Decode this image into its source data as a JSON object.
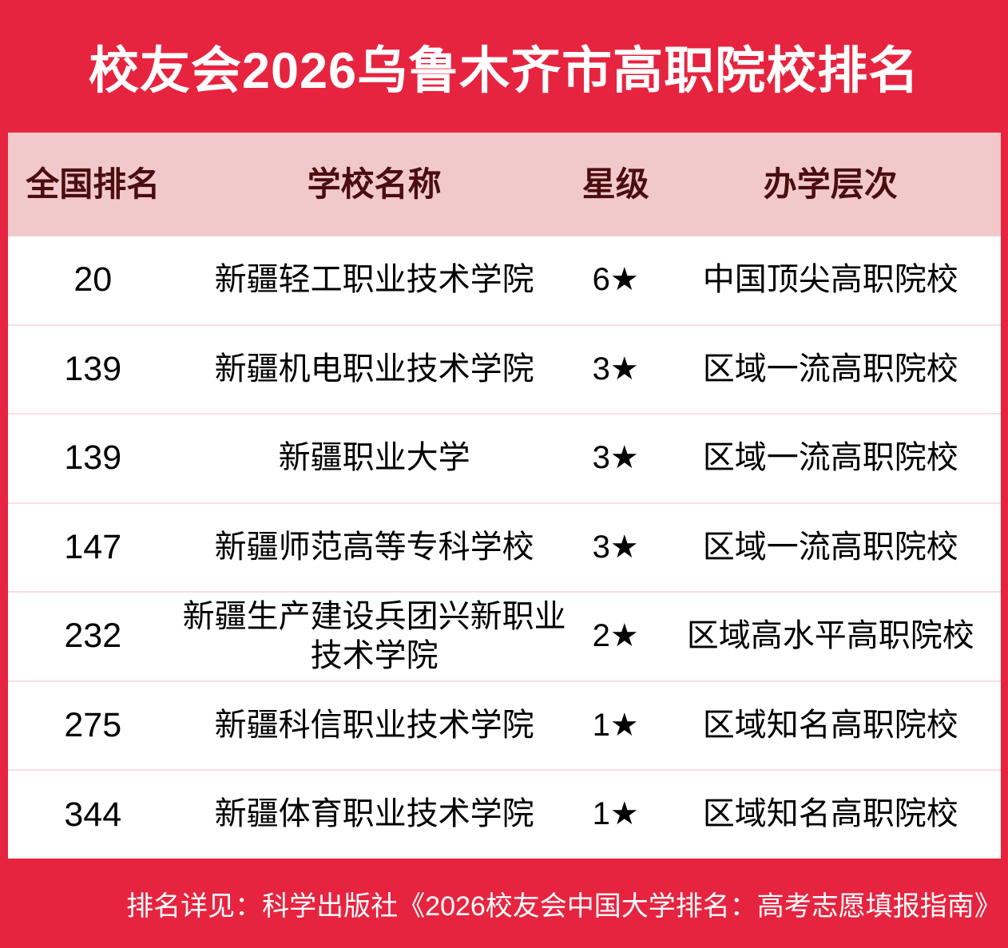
{
  "title": "校友会2026乌鲁木齐市高职院校排名",
  "colors": {
    "brand_red": "#E7243F",
    "header_pink": "#F2C9CB",
    "header_text_maroon": "#4B0E10",
    "row_separator_pink": "#FBDCE2",
    "body_text": "#000000",
    "title_text": "#FFFFFF"
  },
  "chart_data": {
    "type": "table",
    "title": "校友会2026乌鲁木齐市高职院校排名",
    "columns": [
      "全国排名",
      "学校名称",
      "星级",
      "办学层次"
    ],
    "rows": [
      {
        "rank": "20",
        "school": "新疆轻工职业技术学院",
        "star": "6★",
        "level": "中国顶尖高职院校"
      },
      {
        "rank": "139",
        "school": "新疆机电职业技术学院",
        "star": "3★",
        "level": "区域一流高职院校"
      },
      {
        "rank": "139",
        "school": "新疆职业大学",
        "star": "3★",
        "level": "区域一流高职院校"
      },
      {
        "rank": "147",
        "school": "新疆师范高等专科学校",
        "star": "3★",
        "level": "区域一流高职院校"
      },
      {
        "rank": "232",
        "school": "新疆生产建设兵团兴新职业技术学院",
        "star": "2★",
        "level": "区域高水平高职院校"
      },
      {
        "rank": "275",
        "school": "新疆科信职业技术学院",
        "star": "1★",
        "level": "区域知名高职院校"
      },
      {
        "rank": "344",
        "school": "新疆体育职业技术学院",
        "star": "1★",
        "level": "区域知名高职院校"
      }
    ]
  },
  "footer": {
    "text": "排名详见：科学出版社《2026校友会中国大学排名：高考志愿填报指南》"
  }
}
